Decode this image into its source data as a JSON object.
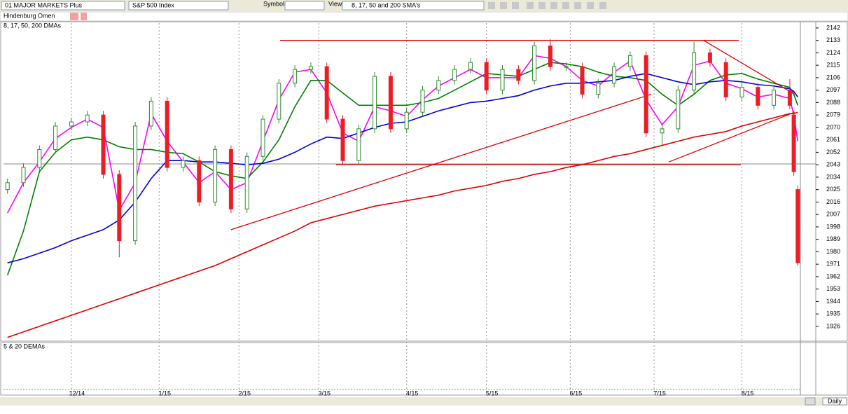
{
  "toolbar": {
    "list": "01 MAJOR MARKETS Plus",
    "index": "S&P 500 Index",
    "symbol": "Symbol",
    "view": "View:",
    "view_value": "8, 17, 50 and 200 SMA's"
  },
  "indicator_bar": {
    "label": "Hindenburg Omen"
  },
  "lower_panel": {
    "label": "5 & 20 DEMAs"
  },
  "footer": {
    "period": "Daily"
  },
  "chart_data": {
    "type": "candlestick",
    "title": "8, 17, 50, 200 DMAs",
    "x": [
      1,
      5,
      9,
      13,
      17,
      21,
      25,
      29,
      33,
      37,
      41,
      45,
      49,
      53,
      57,
      61,
      65,
      69,
      73,
      77,
      81,
      85,
      89,
      93,
      97,
      101,
      105,
      109,
      113,
      117,
      121,
      125,
      129,
      133,
      137,
      141,
      145,
      149,
      153,
      157,
      161,
      165,
      169,
      173,
      177,
      181,
      185,
      189,
      193,
      197,
      198,
      199
    ],
    "open": [
      2025,
      2030,
      2041,
      2054,
      2071,
      2074,
      2079,
      2036,
      1988,
      2071,
      2089,
      2041,
      2046,
      2016,
      2054,
      2011,
      2049,
      2076,
      2102,
      2112,
      2114,
      2076,
      2046,
      2069,
      2107,
      2069,
      2081,
      2097,
      2104,
      2112,
      2117,
      2097,
      2112,
      2104,
      2129,
      2114,
      2114,
      2094,
      2102,
      2114,
      2122,
      2066,
      2069,
      2097,
      2124,
      2117,
      2092,
      2099,
      2086,
      2097,
      2079,
      2025
    ],
    "high": [
      2033,
      2044,
      2057,
      2074,
      2077,
      2082,
      2082,
      2039,
      2074,
      2092,
      2092,
      2049,
      2049,
      2057,
      2057,
      2052,
      2079,
      2105,
      2115,
      2117,
      2117,
      2079,
      2072,
      2110,
      2110,
      2084,
      2100,
      2107,
      2115,
      2120,
      2120,
      2115,
      2115,
      2132,
      2134,
      2117,
      2117,
      2105,
      2117,
      2125,
      2125,
      2072,
      2100,
      2132,
      2127,
      2120,
      2102,
      2102,
      2100,
      2105,
      2082,
      2028
    ],
    "low": [
      2022,
      2027,
      2038,
      2051,
      2068,
      2071,
      2033,
      1976,
      1985,
      2068,
      2038,
      2038,
      2013,
      2013,
      2008,
      2008,
      2046,
      2073,
      2099,
      2109,
      2073,
      2043,
      2043,
      2066,
      2066,
      2066,
      2078,
      2094,
      2101,
      2109,
      2094,
      2094,
      2101,
      2101,
      2111,
      2111,
      2091,
      2091,
      2099,
      2111,
      2063,
      2056,
      2066,
      2094,
      2114,
      2089,
      2089,
      2083,
      2083,
      2083,
      2035,
      1970
    ],
    "close": [
      2030,
      2041,
      2054,
      2071,
      2074,
      2079,
      2036,
      1988,
      2071,
      2089,
      2041,
      2046,
      2016,
      2054,
      2011,
      2049,
      2076,
      2102,
      2112,
      2114,
      2076,
      2046,
      2069,
      2107,
      2069,
      2081,
      2097,
      2104,
      2112,
      2117,
      2097,
      2112,
      2104,
      2129,
      2114,
      2114,
      2094,
      2102,
      2114,
      2122,
      2066,
      2069,
      2097,
      2124,
      2117,
      2092,
      2099,
      2086,
      2097,
      2086,
      2038,
      1972
    ],
    "up_color": "#2e8b2e",
    "down_color": "#ee1c25",
    "series": [
      {
        "color": "#ff00ff",
        "values": [
          2008,
          2030,
          2045,
          2062,
          2070,
          2076,
          2070,
          2010,
          2030,
          2080,
          2060,
          2045,
          2030,
          2038,
          2025,
          2030,
          2060,
          2090,
          2110,
          2112,
          2095,
          2066,
          2060,
          2085,
          2082,
          2078,
          2090,
          2100,
          2106,
          2112,
          2106,
          2106,
          2106,
          2122,
          2120,
          2114,
          2104,
          2100,
          2110,
          2118,
          2090,
          2072,
          2085,
          2115,
          2118,
          2102,
          2098,
          2092,
          2094,
          2091,
          2079,
          2060
        ]
      },
      {
        "color": "#008000",
        "values": [
          1963,
          1995,
          2038,
          2052,
          2061,
          2063,
          2061,
          2056,
          2054,
          2054,
          2052,
          2051,
          2045,
          2038,
          2035,
          2033,
          2045,
          2061,
          2085,
          2104,
          2104,
          2095,
          2086,
          2086,
          2086,
          2086,
          2088,
          2091,
          2097,
          2103,
          2109,
          2108,
          2107,
          2112,
          2117,
          2116,
          2114,
          2110,
          2107,
          2106,
          2104,
          2094,
          2086,
          2094,
          2104,
          2108,
          2109,
          2105,
          2102,
          2099,
          2094,
          2086
        ]
      },
      {
        "color": "#0000dd",
        "values": [
          1972,
          1975,
          1979,
          1983,
          1988,
          1992,
          1996,
          2003,
          2016,
          2033,
          2046,
          2046,
          2045,
          2045,
          2044,
          2043,
          2044,
          2047,
          2052,
          2058,
          2063,
          2062,
          2066,
          2070,
          2073,
          2074,
          2078,
          2082,
          2085,
          2088,
          2089,
          2091,
          2093,
          2097,
          2100,
          2102,
          2102,
          2103,
          2104,
          2107,
          2109,
          2106,
          2103,
          2101,
          2103,
          2104,
          2103,
          2101,
          2100,
          2098,
          2096,
          2092
        ]
      },
      {
        "color": "#e00000",
        "values": [
          1918,
          1922,
          1926,
          1930,
          1934,
          1938,
          1942,
          1946,
          1950,
          1954,
          1958,
          1962,
          1966,
          1970,
          1975,
          1980,
          1985,
          1990,
          1995,
          2001,
          2004,
          2007,
          2010,
          2013,
          2015,
          2017,
          2019,
          2021,
          2024,
          2026,
          2028,
          2031,
          2033,
          2036,
          2038,
          2041,
          2043,
          2046,
          2049,
          2051,
          2054,
          2057,
          2060,
          2063,
          2065,
          2067,
          2071,
          2074,
          2077,
          2080,
          2080,
          2081
        ]
      }
    ],
    "trendlines": {
      "color": "#e00000",
      "lines": [
        {
          "x": [
            69.3,
            184.2
          ],
          "y": [
            2133,
            2133
          ]
        },
        {
          "x": [
            83.3,
            184.7
          ],
          "y": [
            2043,
            2043
          ]
        },
        {
          "x": [
            57,
            162.3
          ],
          "y": [
            1996,
            2094
          ]
        },
        {
          "x": [
            175.4,
            198.2
          ],
          "y": [
            2133,
            2094
          ]
        },
        {
          "x": [
            166.7,
            198.2
          ],
          "y": [
            2045,
            2081
          ]
        }
      ]
    },
    "xlim": [
      0,
      200
    ],
    "xticks": [
      {
        "value": 17,
        "label": "12/14"
      },
      {
        "value": 39,
        "label": "1/15"
      },
      {
        "value": 59,
        "label": "2/15"
      },
      {
        "value": 79,
        "label": "3/15"
      },
      {
        "value": 101,
        "label": "4/15"
      },
      {
        "value": 121,
        "label": "5/15"
      },
      {
        "value": 142,
        "label": "6/15"
      },
      {
        "value": 163,
        "label": "7/15"
      },
      {
        "value": 185,
        "label": "8/15"
      }
    ],
    "ylim": [
      1915.3,
      2145.5
    ],
    "yticks": [
      2142,
      2133,
      2124,
      2115,
      2106,
      2097,
      2088,
      2079,
      2070,
      2061,
      2052,
      2043,
      2034,
      2025,
      2016,
      2007,
      1998,
      1989,
      1980,
      1971,
      1962,
      1953,
      1944,
      1935,
      1926
    ],
    "xgrid": true
  }
}
